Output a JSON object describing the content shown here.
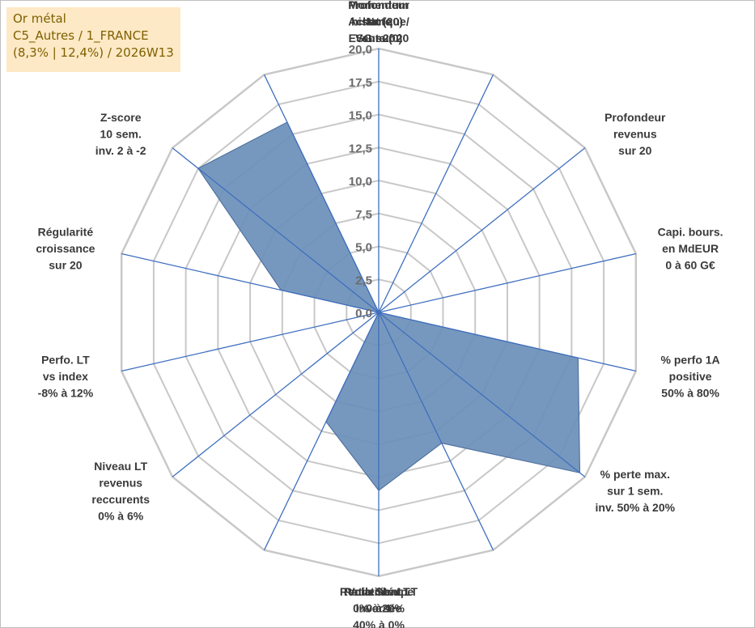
{
  "info_box": {
    "line1": "Or métal",
    "line2": "C5_Autres / 1_FRANCE",
    "line3": "(8,3% | 12,4%) / 2026W13"
  },
  "chart_data": {
    "type": "radar",
    "title": "",
    "rmin": 0,
    "rmax": 20,
    "tick_step": 2.5,
    "tick_labels": [
      "0,0",
      "2,5",
      "5,0",
      "7,5",
      "10,0",
      "12,5",
      "15,0",
      "17,5",
      "20,0"
    ],
    "grid": true,
    "axes": [
      {
        "label": [
          "Note",
          "ESG sur 20"
        ],
        "value": 0
      },
      {
        "label": [
          "Profondeur",
          "historique",
          "sur 20"
        ],
        "value": 0
      },
      {
        "label": [
          "Profondeur",
          "revenus",
          "sur 20"
        ],
        "value": 0
      },
      {
        "label": [
          "Capi. bours.",
          "en MdEUR",
          "0 à 60 G€"
        ],
        "value": 0
      },
      {
        "label": [
          "% perfo 1A",
          "positive",
          "50% à 80%"
        ],
        "value": 15.5
      },
      {
        "label": [
          "% perte max.",
          "sur 1 sem.",
          "inv. 50% à 20%"
        ],
        "value": 19.5
      },
      {
        "label": [
          "Volatilité LT",
          "inversée",
          "40% à 0%"
        ],
        "value": 11
      },
      {
        "label": [
          "Ratio Sharpe",
          "0 à 1"
        ],
        "value": 13.5
      },
      {
        "label": [
          "Rendement LT",
          "0% à 20%"
        ],
        "value": 9.2
      },
      {
        "label": [
          "Niveau LT",
          "revenus",
          "reccurents",
          "0% à 6%"
        ],
        "value": 0
      },
      {
        "label": [
          "Perfo. LT",
          "vs index",
          "-8% à 12%"
        ],
        "value": 0
      },
      {
        "label": [
          "Régularité",
          "croissance",
          "sur 20"
        ],
        "value": 0
      },
      {
        "label": [
          "Régularité",
          "croissance",
          "sur 20"
        ],
        "value": 7.6
      },
      {
        "label": [
          "Z-score",
          "10 sem.",
          "inv. 2 à -2"
        ],
        "value": 17.5
      },
      {
        "label": [
          "Momentum",
          "Achat (20) /",
          "Vente (0)"
        ],
        "value": 16
      }
    ],
    "colors": {
      "fill": "#6b8fb8",
      "stroke": "#4f72a0",
      "grid": "#c8c8c8",
      "axis": "#3f6fbf"
    }
  }
}
